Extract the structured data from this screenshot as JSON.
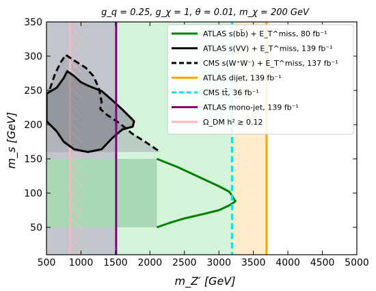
{
  "chart_data": {
    "type": "exclusion-plot",
    "title": "g_q = 0.25, g_χ = 1, θ = 0.01, m_χ = 200 GeV",
    "xlabel": "m_Z′ [GeV]",
    "ylabel": "m_s [GeV]",
    "xlim": [
      500,
      5000
    ],
    "ylim": [
      10,
      350
    ],
    "xticks": [
      500,
      1000,
      1500,
      2000,
      2500,
      3000,
      3500,
      4000,
      4500,
      5000
    ],
    "yticks": [
      50,
      100,
      150,
      200,
      250,
      300,
      350
    ],
    "legend_position": "top-right",
    "series": [
      {
        "name": "ATLAS s(bb̄) + E_T^miss, 80 fb⁻¹",
        "color": "#008000",
        "style": "solid",
        "points": [
          [
            2100,
            150
          ],
          [
            2400,
            138
          ],
          [
            2700,
            124
          ],
          [
            3000,
            110
          ],
          [
            3150,
            102
          ],
          [
            3190,
            96
          ],
          [
            3240,
            88
          ],
          [
            3150,
            82
          ],
          [
            3000,
            75
          ],
          [
            2800,
            70
          ],
          [
            2500,
            63
          ],
          [
            2300,
            57
          ],
          [
            2100,
            50
          ]
        ]
      },
      {
        "name": "ATLAS s(VV) + E_T^miss, 139 fb⁻¹",
        "color": "#000000",
        "style": "solid",
        "points": [
          [
            500,
            245
          ],
          [
            650,
            254
          ],
          [
            750,
            268
          ],
          [
            800,
            278
          ],
          [
            900,
            271
          ],
          [
            1000,
            262
          ],
          [
            1100,
            257
          ],
          [
            1300,
            249
          ],
          [
            1450,
            236
          ],
          [
            1600,
            222
          ],
          [
            1700,
            212
          ],
          [
            1770,
            205
          ],
          [
            1750,
            197
          ],
          [
            1600,
            193
          ],
          [
            1450,
            180
          ],
          [
            1300,
            164
          ],
          [
            1100,
            160
          ],
          [
            900,
            164
          ],
          [
            750,
            175
          ],
          [
            650,
            190
          ],
          [
            530,
            202
          ],
          [
            500,
            205
          ]
        ]
      },
      {
        "name": "CMS s(W⁺W⁻) + E_T^miss, 137 fb⁻¹",
        "color": "#000000",
        "style": "dashed",
        "points": [
          [
            550,
            252
          ],
          [
            620,
            273
          ],
          [
            700,
            290
          ],
          [
            780,
            302
          ],
          [
            880,
            295
          ],
          [
            960,
            290
          ],
          [
            1070,
            283
          ],
          [
            1180,
            271
          ],
          [
            1260,
            253
          ],
          [
            1300,
            233
          ],
          [
            1280,
            223
          ],
          [
            1380,
            214
          ],
          [
            1560,
            202
          ],
          [
            1740,
            187
          ],
          [
            1960,
            173
          ],
          [
            2150,
            160
          ]
        ]
      },
      {
        "name": "ATLAS dijet, 139 fb⁻¹",
        "color": "#ffa500",
        "style": "solid",
        "x": 3690
      },
      {
        "name": "CMS tt̄, 36 fb⁻¹",
        "color": "#00e5ee",
        "style": "dashed",
        "x": 3190
      },
      {
        "name": "ATLAS mono-jet, 139 fb⁻¹",
        "color": "#800080",
        "style": "solid",
        "x": 1510
      },
      {
        "name": "Ω_DM h² ≥ 0.12",
        "color": "#ffb6c1",
        "style": "solid",
        "x": [
          840,
          1010
        ]
      }
    ],
    "regions": [
      {
        "x": [
          500,
          5000
        ],
        "y": [
          10,
          350
        ],
        "color": "#ffffff"
      },
      {
        "x": [
          500,
          3690
        ],
        "y": [
          10,
          350
        ],
        "color": "#ffedcc"
      },
      {
        "x": [
          500,
          3190
        ],
        "y": [
          10,
          350
        ],
        "color": "#d4f4d9"
      },
      {
        "x": [
          500,
          1510
        ],
        "y": [
          10,
          350
        ],
        "color": "#c1c6cc"
      },
      {
        "x": [
          500,
          2100
        ],
        "y": [
          50,
          150
        ],
        "color": "#a8d8b4"
      }
    ]
  }
}
